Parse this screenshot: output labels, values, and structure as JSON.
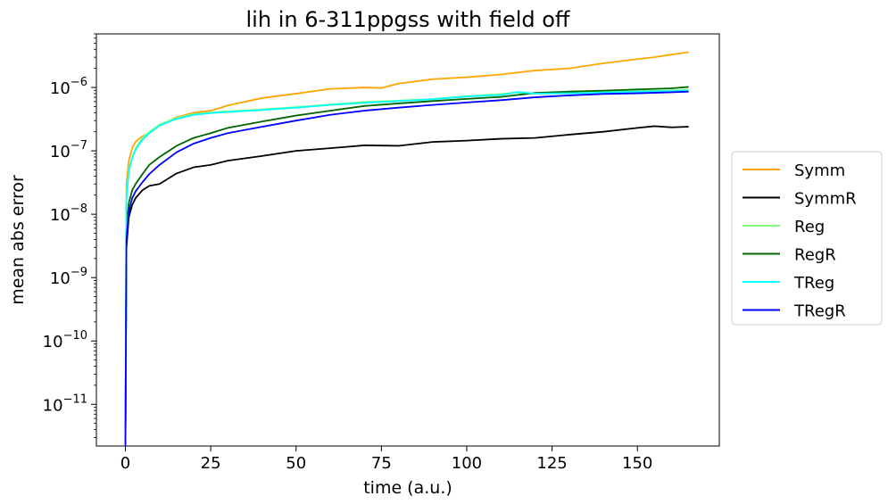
{
  "chart_data": {
    "type": "line",
    "title": "lih in 6-311ppgss with field off",
    "xlabel": "time (a.u.)",
    "ylabel": "mean abs error",
    "y_scale": "log",
    "xlim": [
      -8.5,
      174
    ],
    "ylim": [
      2.2e-12,
      7e-06
    ],
    "x_ticks": [
      0,
      25,
      50,
      75,
      100,
      125,
      150
    ],
    "x_tick_labels": [
      "0",
      "25",
      "50",
      "75",
      "100",
      "125",
      "150"
    ],
    "y_ticks": [
      1e-11,
      1e-10,
      1e-09,
      1e-08,
      1e-07,
      1e-06
    ],
    "y_tick_labels": [
      {
        "base": "10",
        "exp": "−11"
      },
      {
        "base": "10",
        "exp": "−10"
      },
      {
        "base": "10",
        "exp": "−9"
      },
      {
        "base": "10",
        "exp": "−8"
      },
      {
        "base": "10",
        "exp": "−7"
      },
      {
        "base": "10",
        "exp": "−6"
      }
    ],
    "grid": false,
    "legend_position": "right, outside plot",
    "series": [
      {
        "name": "Symm",
        "color": "#FFA500",
        "x": [
          0,
          0.3,
          1,
          2,
          3,
          5,
          7,
          10,
          15,
          20,
          25,
          30,
          40,
          50,
          60,
          70,
          75,
          80,
          90,
          100,
          110,
          120,
          130,
          140,
          150,
          155,
          160,
          165
        ],
        "y": [
          2e-12,
          3e-08,
          7e-08,
          1.1e-07,
          1.4e-07,
          1.7e-07,
          1.9e-07,
          2.5e-07,
          3.4e-07,
          4e-07,
          4.3e-07,
          5.2e-07,
          6.8e-07,
          8e-07,
          9.5e-07,
          1e-06,
          9.8e-07,
          1.15e-06,
          1.35e-06,
          1.45e-06,
          1.6e-06,
          1.85e-06,
          2e-06,
          2.4e-06,
          2.8e-06,
          3e-06,
          3.3e-06,
          3.6e-06
        ]
      },
      {
        "name": "SymmR",
        "color": "#000000",
        "x": [
          0,
          0.3,
          1,
          2,
          3,
          5,
          7,
          10,
          15,
          20,
          25,
          30,
          40,
          50,
          60,
          70,
          80,
          90,
          100,
          110,
          120,
          130,
          140,
          150,
          155,
          160,
          165
        ],
        "y": [
          2e-12,
          3e-09,
          9e-09,
          1.4e-08,
          1.8e-08,
          2.4e-08,
          2.8e-08,
          3e-08,
          4.4e-08,
          5.5e-08,
          6e-08,
          7e-08,
          8.3e-08,
          1e-07,
          1.1e-07,
          1.22e-07,
          1.2e-07,
          1.38e-07,
          1.45e-07,
          1.55e-07,
          1.6e-07,
          1.8e-07,
          2e-07,
          2.3e-07,
          2.45e-07,
          2.35e-07,
          2.4e-07
        ]
      },
      {
        "name": "Reg",
        "color": "#80FF80",
        "x": [
          0,
          0.3,
          1,
          2,
          3,
          5,
          7,
          10,
          15,
          20,
          25,
          30,
          40,
          50,
          60,
          70,
          80,
          90,
          100,
          110,
          115,
          120,
          130,
          140,
          150,
          160,
          165
        ],
        "y": [
          2e-12,
          2e-08,
          5e-08,
          8e-08,
          1.1e-07,
          1.6e-07,
          2e-07,
          2.6e-07,
          3.3e-07,
          3.8e-07,
          4e-07,
          4.2e-07,
          4.5e-07,
          4.9e-07,
          5.4e-07,
          5.9e-07,
          6.2e-07,
          6.6e-07,
          7.3e-07,
          7.9e-07,
          8.3e-07,
          8e-07,
          8.2e-07,
          8.5e-07,
          8.8e-07,
          9e-07,
          9.2e-07
        ]
      },
      {
        "name": "RegR",
        "color": "#006400",
        "x": [
          0,
          0.3,
          1,
          2,
          3,
          5,
          7,
          10,
          15,
          20,
          25,
          30,
          40,
          50,
          60,
          70,
          80,
          90,
          100,
          110,
          120,
          130,
          140,
          150,
          160,
          165
        ],
        "y": [
          2e-12,
          6e-09,
          1.5e-08,
          2.4e-08,
          3e-08,
          4.3e-08,
          6e-08,
          8e-08,
          1.2e-07,
          1.6e-07,
          1.9e-07,
          2.3e-07,
          2.9e-07,
          3.6e-07,
          4.3e-07,
          5.1e-07,
          5.6e-07,
          6.1e-07,
          6.6e-07,
          7.1e-07,
          8.2e-07,
          8.6e-07,
          8.9e-07,
          9.3e-07,
          9.7e-07,
          1.02e-06
        ]
      },
      {
        "name": "TReg",
        "color": "#00FFFF",
        "x": [
          0,
          0.3,
          1,
          2,
          3,
          5,
          7,
          10,
          15,
          20,
          25,
          30,
          40,
          50,
          60,
          70,
          80,
          90,
          100,
          110,
          115,
          120,
          130,
          140,
          150,
          160,
          165
        ],
        "y": [
          2e-12,
          1.8e-08,
          4.8e-08,
          7.8e-08,
          1.05e-07,
          1.5e-07,
          1.9e-07,
          2.5e-07,
          3.2e-07,
          3.7e-07,
          3.95e-07,
          4.1e-07,
          4.4e-07,
          4.8e-07,
          5.3e-07,
          5.7e-07,
          6.1e-07,
          6.5e-07,
          7.2e-07,
          7.6e-07,
          8.5e-07,
          8e-07,
          8.1e-07,
          8.3e-07,
          8.6e-07,
          8.8e-07,
          8.9e-07
        ]
      },
      {
        "name": "TRegR",
        "color": "#0000FF",
        "x": [
          0,
          0.3,
          1,
          2,
          3,
          5,
          7,
          10,
          15,
          20,
          25,
          30,
          40,
          50,
          60,
          70,
          80,
          90,
          100,
          110,
          120,
          130,
          140,
          150,
          160,
          165
        ],
        "y": [
          2e-12,
          4e-09,
          1.1e-08,
          1.8e-08,
          2.3e-08,
          3.2e-08,
          4.3e-08,
          6e-08,
          9.5e-08,
          1.3e-07,
          1.6e-07,
          1.9e-07,
          2.4e-07,
          3e-07,
          3.7e-07,
          4.3e-07,
          4.8e-07,
          5.3e-07,
          5.8e-07,
          6.3e-07,
          7e-07,
          7.5e-07,
          7.9e-07,
          8.1e-07,
          8.4e-07,
          8.6e-07
        ]
      }
    ]
  }
}
